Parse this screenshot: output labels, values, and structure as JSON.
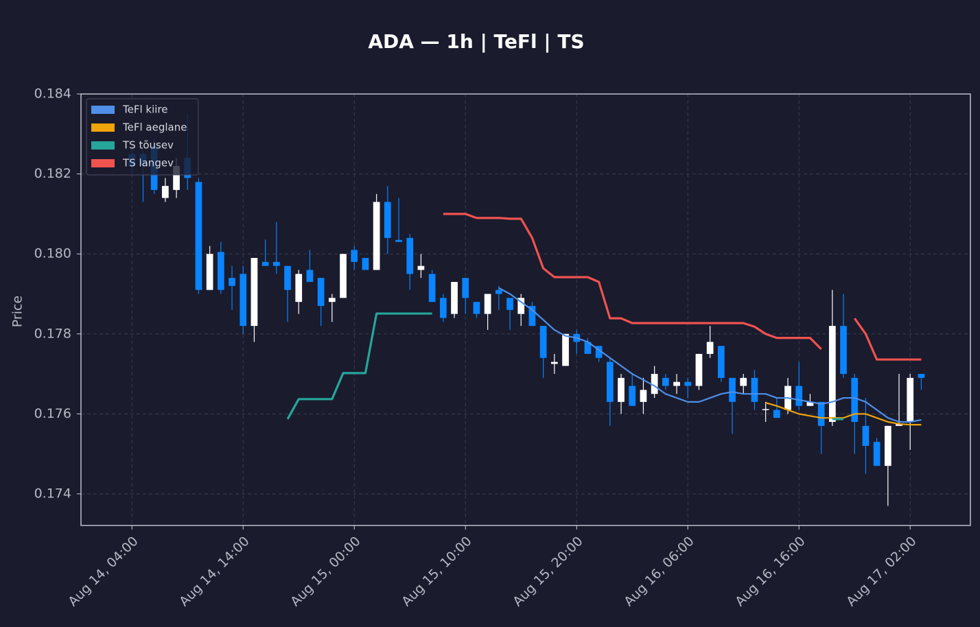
{
  "chart_data": {
    "type": "candlestick",
    "title": "ADA — 1h  |  TeFl  |  TS",
    "y_label": "Price",
    "x": [
      "Aug 14, 04:00",
      "Aug 14, 05:00",
      "Aug 14, 06:00",
      "Aug 14, 07:00",
      "Aug 14, 08:00",
      "Aug 14, 09:00",
      "Aug 14, 10:00",
      "Aug 14, 11:00",
      "Aug 14, 12:00",
      "Aug 14, 13:00",
      "Aug 14, 14:00",
      "Aug 14, 15:00",
      "Aug 14, 16:00",
      "Aug 14, 17:00",
      "Aug 14, 18:00",
      "Aug 14, 19:00",
      "Aug 14, 20:00",
      "Aug 14, 21:00",
      "Aug 14, 22:00",
      "Aug 14, 23:00",
      "Aug 15, 00:00",
      "Aug 15, 01:00",
      "Aug 15, 02:00",
      "Aug 15, 03:00",
      "Aug 15, 04:00",
      "Aug 15, 05:00",
      "Aug 15, 06:00",
      "Aug 15, 07:00",
      "Aug 15, 08:00",
      "Aug 15, 09:00",
      "Aug 15, 10:00",
      "Aug 15, 11:00",
      "Aug 15, 12:00",
      "Aug 15, 13:00",
      "Aug 15, 14:00",
      "Aug 15, 15:00",
      "Aug 15, 16:00",
      "Aug 15, 17:00",
      "Aug 15, 18:00",
      "Aug 15, 19:00",
      "Aug 15, 20:00",
      "Aug 15, 21:00",
      "Aug 15, 22:00",
      "Aug 15, 23:00",
      "Aug 16, 00:00",
      "Aug 16, 01:00",
      "Aug 16, 02:00",
      "Aug 16, 03:00",
      "Aug 16, 04:00",
      "Aug 16, 05:00",
      "Aug 16, 06:00",
      "Aug 16, 07:00",
      "Aug 16, 08:00",
      "Aug 16, 09:00",
      "Aug 16, 10:00",
      "Aug 16, 11:00",
      "Aug 16, 12:00",
      "Aug 16, 13:00",
      "Aug 16, 14:00",
      "Aug 16, 15:00",
      "Aug 16, 16:00",
      "Aug 16, 17:00",
      "Aug 16, 18:00",
      "Aug 16, 19:00",
      "Aug 16, 20:00",
      "Aug 16, 21:00",
      "Aug 16, 22:00",
      "Aug 16, 23:00",
      "Aug 17, 00:00",
      "Aug 17, 01:00",
      "Aug 17, 02:00",
      "Aug 17, 03:00"
    ],
    "open": [
      0.1825,
      0.1825,
      0.1827,
      0.1814,
      0.1816,
      0.1824,
      0.1818,
      0.1791,
      0.18005,
      0.1794,
      0.1795,
      0.1782,
      0.1798,
      0.1798,
      0.1797,
      0.1788,
      0.1796,
      0.1794,
      0.1788,
      0.1789,
      0.1801,
      0.1799,
      0.1796,
      0.1813,
      0.18035,
      0.1804,
      0.1796,
      0.1795,
      0.1789,
      0.1785,
      0.1794,
      0.1788,
      0.1785,
      0.1791,
      0.1789,
      0.1785,
      0.1787,
      0.1782,
      0.17725,
      0.1772,
      0.178,
      0.1778,
      0.1777,
      0.1773,
      0.1763,
      0.1767,
      0.1763,
      0.1765,
      0.1769,
      0.1767,
      0.1768,
      0.1767,
      0.1775,
      0.1777,
      0.1769,
      0.1767,
      0.1769,
      0.1761,
      0.1761,
      0.1761,
      0.1767,
      0.1762,
      0.1763,
      0.1758,
      0.1782,
      0.1769,
      0.1757,
      0.1753,
      0.1747,
      0.1757,
      0.1758,
      0.177
    ],
    "close": [
      0.1822,
      0.1822,
      0.1816,
      0.1817,
      0.1822,
      0.1819,
      0.1791,
      0.18,
      0.1791,
      0.1792,
      0.1782,
      0.1799,
      0.1797,
      0.1797,
      0.1791,
      0.1795,
      0.1793,
      0.1787,
      0.1789,
      0.18,
      0.1798,
      0.1796,
      0.1813,
      0.1804,
      0.1803,
      0.1795,
      0.1797,
      0.1788,
      0.1784,
      0.1793,
      0.1789,
      0.1785,
      0.179,
      0.179,
      0.1786,
      0.1789,
      0.1782,
      0.1774,
      0.1773,
      0.178,
      0.1778,
      0.1775,
      0.1774,
      0.1763,
      0.1769,
      0.1762,
      0.1766,
      0.177,
      0.1767,
      0.1768,
      0.1767,
      0.1775,
      0.1778,
      0.1769,
      0.1763,
      0.1769,
      0.1763,
      0.17612,
      0.1759,
      0.1767,
      0.1762,
      0.1763,
      0.1757,
      0.1782,
      0.177,
      0.1758,
      0.1752,
      0.1747,
      0.1757,
      0.17575,
      0.1769,
      0.1769
    ],
    "high": [
      0.1827,
      0.1826,
      0.1829,
      0.1819,
      0.1824,
      0.1835,
      0.1819,
      0.1802,
      0.1803,
      0.1797,
      0.1797,
      0.1799,
      0.18036,
      0.1808,
      0.1797,
      0.1796,
      0.1801,
      0.1794,
      0.179,
      0.18,
      0.1802,
      0.1799,
      0.1815,
      0.1817,
      0.1814,
      0.1805,
      0.18,
      0.1796,
      0.179,
      0.1793,
      0.1794,
      0.1788,
      0.179,
      0.1792,
      0.1789,
      0.179,
      0.1788,
      0.1782,
      0.1775,
      0.178,
      0.1781,
      0.1779,
      0.1777,
      0.1774,
      0.177,
      0.177,
      0.1769,
      0.1772,
      0.177,
      0.177,
      0.1769,
      0.1775,
      0.1782,
      0.1777,
      0.1769,
      0.177,
      0.1771,
      0.1763,
      0.1764,
      0.1769,
      0.1773,
      0.1765,
      0.1763,
      0.1791,
      0.179,
      0.177,
      0.1764,
      0.1754,
      0.1757,
      0.177,
      0.177,
      0.177
    ],
    "low": [
      0.182,
      0.1813,
      0.1815,
      0.1813,
      0.1814,
      0.1816,
      0.179,
      0.1791,
      0.179,
      0.1786,
      0.178,
      0.1778,
      0.1797,
      0.1795,
      0.1783,
      0.1785,
      0.1793,
      0.1782,
      0.1783,
      0.1789,
      0.1796,
      0.1796,
      0.1796,
      0.18,
      0.1803,
      0.1791,
      0.1794,
      0.1788,
      0.1783,
      0.1784,
      0.1785,
      0.1784,
      0.1781,
      0.1786,
      0.1781,
      0.1782,
      0.1782,
      0.1769,
      0.177,
      0.1772,
      0.1775,
      0.1775,
      0.1773,
      0.1757,
      0.176,
      0.1762,
      0.176,
      0.1764,
      0.1766,
      0.1765,
      0.1764,
      0.1766,
      0.1774,
      0.1768,
      0.1755,
      0.1765,
      0.1761,
      0.1758,
      0.1759,
      0.176,
      0.1761,
      0.1762,
      0.175,
      0.1757,
      0.1769,
      0.175,
      0.1745,
      0.1747,
      0.1737,
      0.1757,
      0.1751,
      0.1766
    ],
    "up_color": "#ffffff",
    "down_color": "#0a84ff",
    "series": [
      {
        "name": "TeFl kiire",
        "color": "#4f8fe8",
        "values": [
          null,
          null,
          null,
          null,
          null,
          null,
          null,
          null,
          null,
          null,
          null,
          null,
          null,
          null,
          null,
          null,
          null,
          null,
          null,
          null,
          null,
          null,
          null,
          null,
          null,
          null,
          null,
          null,
          null,
          null,
          null,
          null,
          null,
          0.17915,
          0.179,
          0.1788,
          0.1786,
          0.17835,
          0.1781,
          0.17795,
          0.1779,
          0.1778,
          0.1776,
          0.1774,
          0.1772,
          0.177,
          0.17685,
          0.1767,
          0.1765,
          0.1764,
          0.1763,
          0.1763,
          0.1764,
          0.1765,
          0.17655,
          0.1765,
          0.1765,
          0.1765,
          0.1764,
          0.1764,
          0.17635,
          0.1763,
          0.17625,
          0.1763,
          0.1764,
          0.1764,
          0.1763,
          0.1761,
          0.1759,
          0.1758,
          0.1758,
          0.17585
        ]
      },
      {
        "name": "TeFl aeglane",
        "color": "#f0a30a",
        "values": [
          null,
          null,
          null,
          null,
          null,
          null,
          null,
          null,
          null,
          null,
          null,
          null,
          null,
          null,
          null,
          null,
          null,
          null,
          null,
          null,
          null,
          null,
          null,
          null,
          null,
          null,
          null,
          null,
          null,
          null,
          null,
          null,
          null,
          null,
          null,
          null,
          null,
          null,
          null,
          null,
          null,
          null,
          null,
          null,
          null,
          null,
          null,
          null,
          null,
          null,
          null,
          null,
          null,
          null,
          null,
          null,
          null,
          0.17628,
          0.1762,
          0.1761,
          0.176,
          0.17595,
          0.1759,
          0.1759,
          0.1759,
          0.176,
          0.176,
          0.1759,
          0.1758,
          0.17575,
          0.17573,
          0.17573
        ]
      },
      {
        "name": "TS tõusev",
        "color": "#26a69a",
        "values": [
          null,
          null,
          null,
          null,
          null,
          null,
          null,
          null,
          null,
          null,
          null,
          null,
          null,
          null,
          0.17587,
          0.17637,
          0.17637,
          0.17637,
          0.17637,
          0.17702,
          0.17702,
          0.17702,
          0.17851,
          0.17851,
          0.17851,
          0.17851,
          0.17851,
          0.17851,
          null,
          null,
          null,
          null,
          null,
          null,
          null,
          null,
          null,
          null,
          null,
          null,
          null,
          null,
          null,
          null,
          null,
          null,
          null,
          null,
          null,
          null,
          null,
          null,
          null,
          null,
          null,
          null,
          null,
          null,
          null,
          null,
          null,
          null,
          null,
          0.17587,
          0.17587,
          null,
          null,
          null,
          null,
          null,
          null,
          null
        ]
      },
      {
        "name": "TS langev",
        "color": "#ef5350",
        "values": [
          null,
          null,
          null,
          null,
          null,
          null,
          null,
          null,
          null,
          null,
          null,
          null,
          null,
          null,
          null,
          null,
          null,
          null,
          null,
          null,
          null,
          null,
          null,
          null,
          null,
          null,
          null,
          null,
          0.181,
          0.181,
          0.181,
          0.1809,
          0.1809,
          0.1809,
          0.18088,
          0.18088,
          0.1804,
          0.17964,
          0.17942,
          0.17942,
          0.17942,
          0.17942,
          0.1793,
          0.17839,
          0.17839,
          0.17827,
          0.17827,
          0.17827,
          0.17827,
          0.17827,
          0.17827,
          0.17827,
          0.17827,
          0.17827,
          0.17827,
          0.17827,
          0.17818,
          0.178,
          0.1779,
          0.1779,
          0.1779,
          0.1779,
          0.17762,
          null,
          null,
          0.17839,
          0.178,
          0.17736,
          0.17736,
          0.17736,
          0.17736,
          0.17736
        ]
      }
    ],
    "xlim": [
      "Aug 13, 23:25",
      "Aug 17, 07:25"
    ],
    "xticks": [
      "Aug 14, 04:00",
      "Aug 14, 14:00",
      "Aug 15, 00:00",
      "Aug 15, 10:00",
      "Aug 15, 20:00",
      "Aug 16, 06:00",
      "Aug 16, 16:00",
      "Aug 17, 02:00"
    ],
    "ylim": [
      0.17321,
      0.184
    ],
    "yticks": [
      {
        "value": 0.174,
        "label": "0.174"
      },
      {
        "value": 0.176,
        "label": "0.176"
      },
      {
        "value": 0.178,
        "label": "0.178"
      },
      {
        "value": 0.18,
        "label": "0.180"
      },
      {
        "value": 0.182,
        "label": "0.182"
      },
      {
        "value": 0.184,
        "label": "0.184"
      }
    ],
    "grid": true,
    "legend": "upper left"
  }
}
